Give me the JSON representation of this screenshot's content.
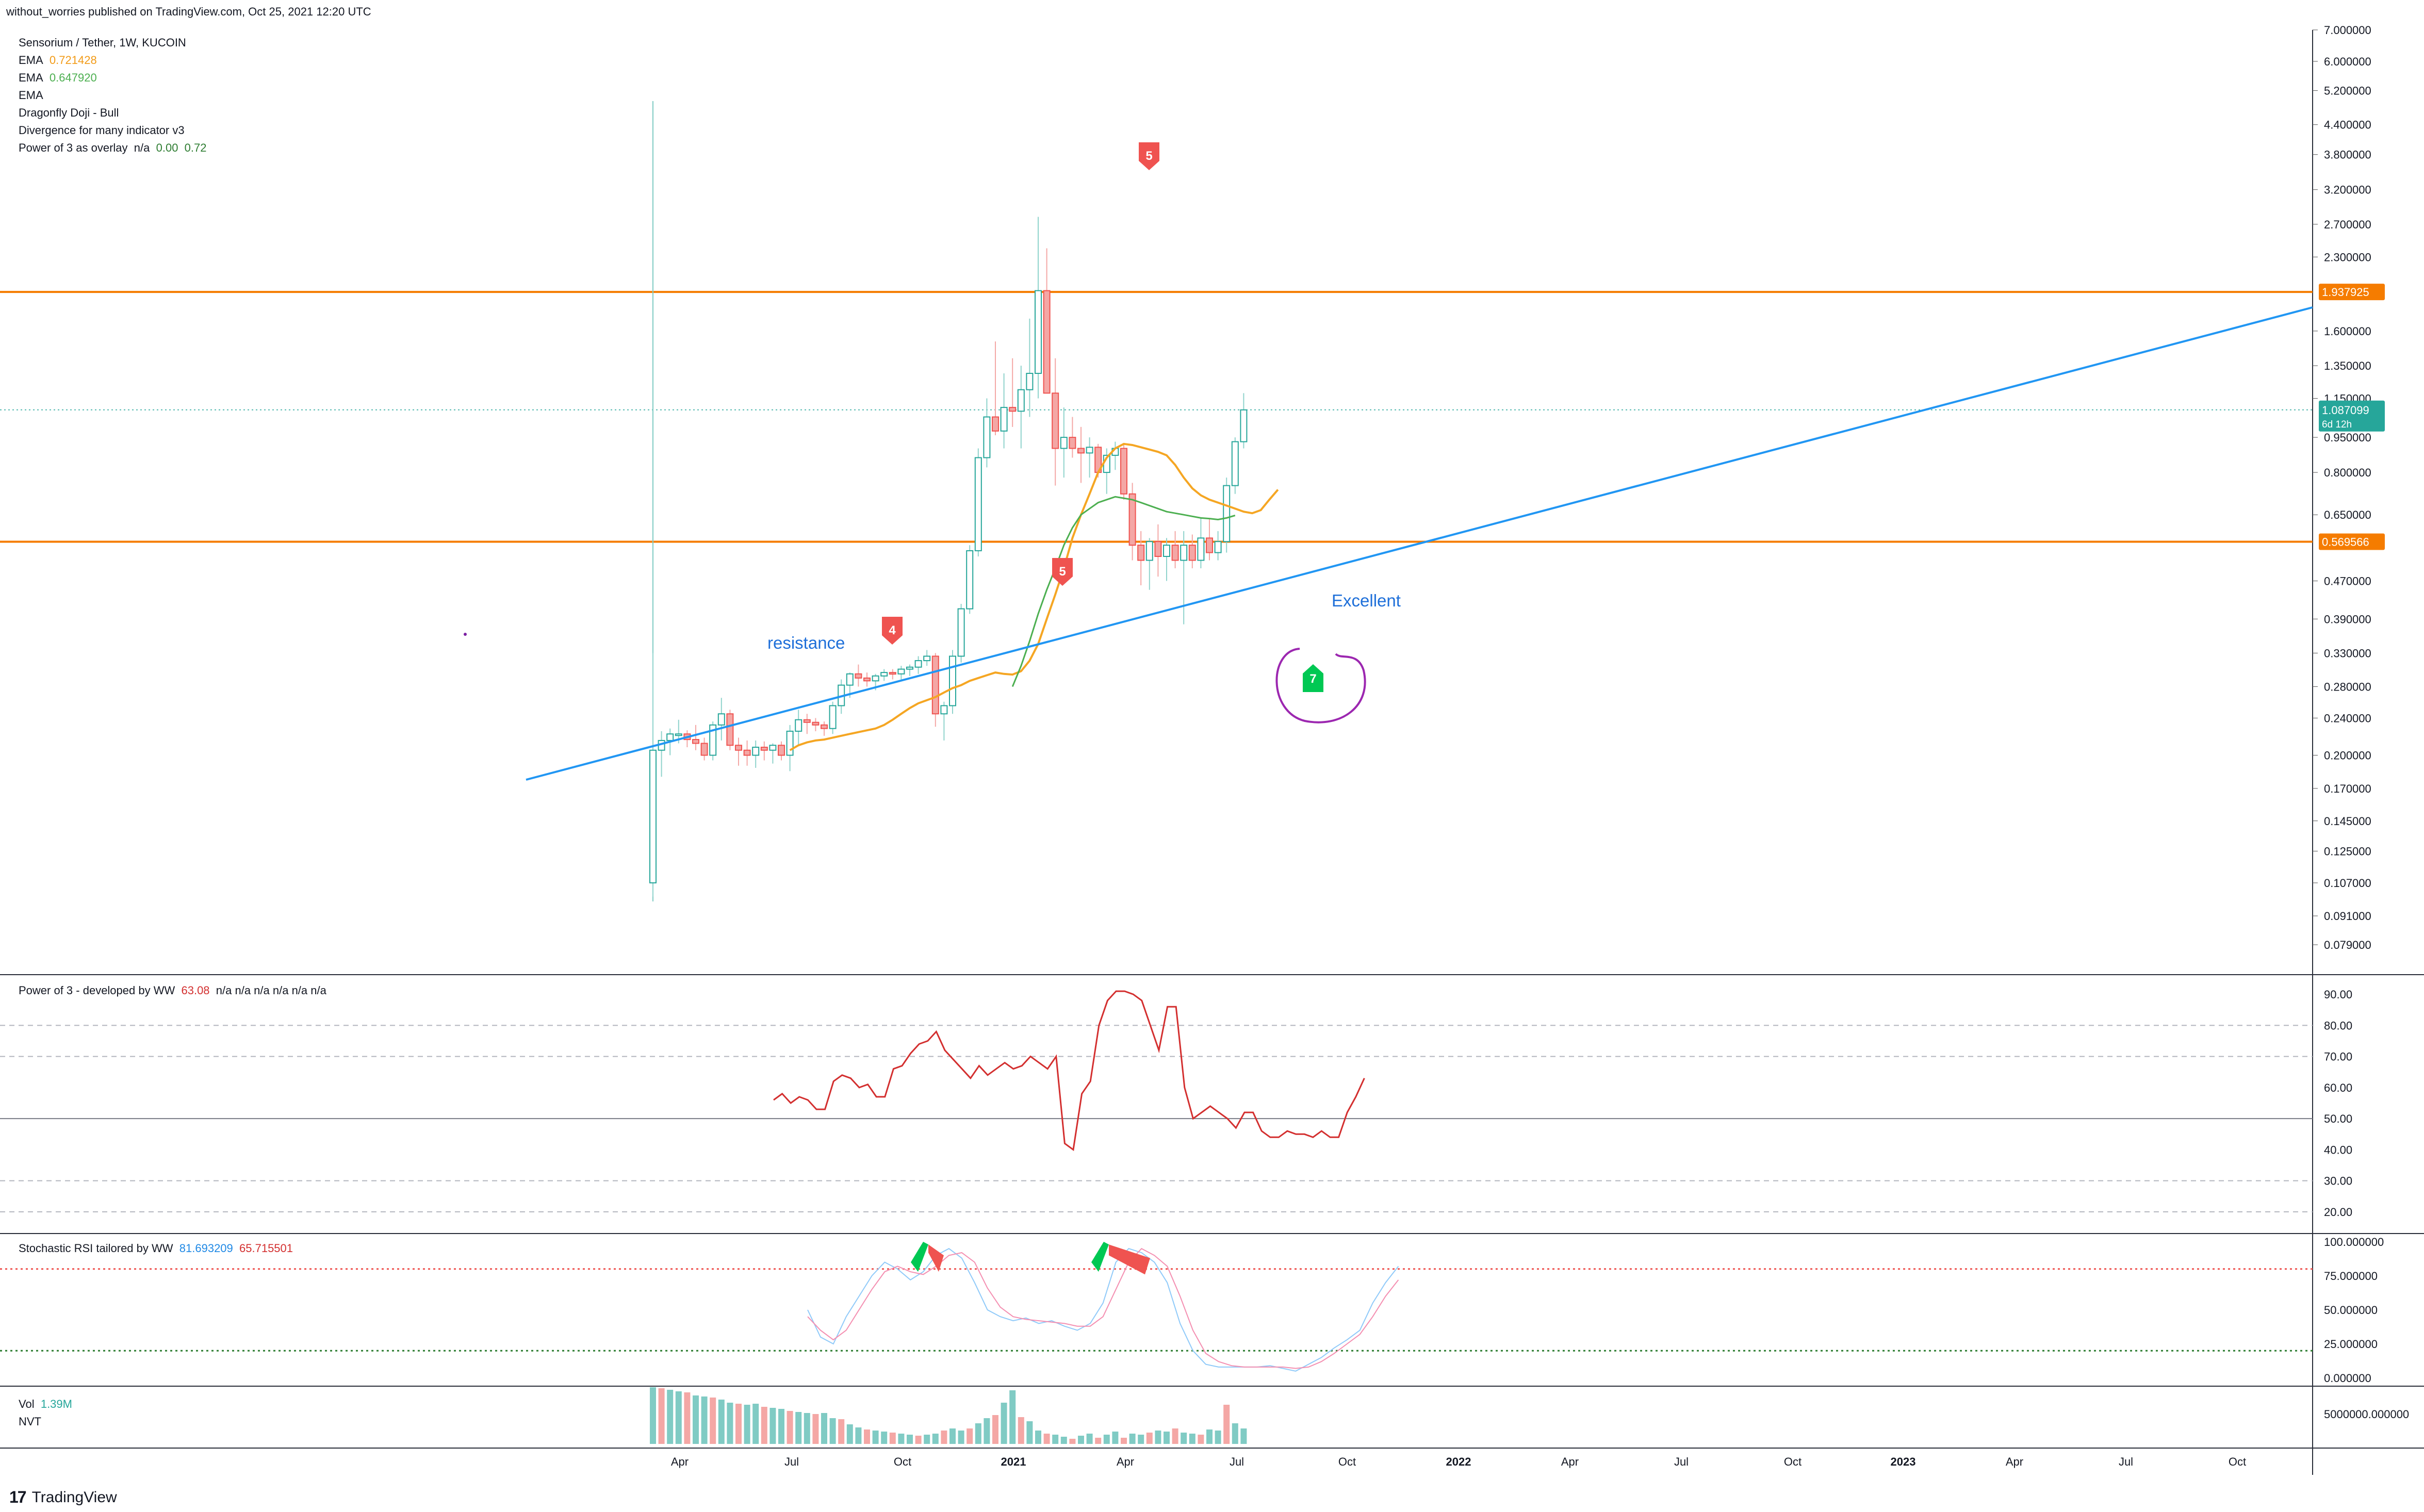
{
  "header": {
    "published": "without_worries published on TradingView.com, Oct 25, 2021 12:20 UTC"
  },
  "legend": {
    "symbol": "Sensorium / Tether, 1W, KUCOIN",
    "ema1_label": "EMA",
    "ema1_value": "0.721428",
    "ema2_label": "EMA",
    "ema2_value": "0.647920",
    "ema3_label": "EMA",
    "doji": "Dragonfly Doji - Bull",
    "divergence": "Divergence for many indicator v3",
    "power_label": "Power of 3 as overlay",
    "power_na": "n/a",
    "power_v1": "0.00",
    "power_v2": "0.72"
  },
  "annotations": {
    "resistance": "resistance",
    "excellent": "Excellent"
  },
  "markers": {
    "m1": "5",
    "m2": "4",
    "m3": "5",
    "m4": "7"
  },
  "indicator_panes": {
    "power": {
      "label": "Power of 3 - developed by WW",
      "value": "63.08",
      "na": "n/a  n/a  n/a  n/a  n/a  n/a"
    },
    "stoch": {
      "label": "Stochastic RSI tailored by WW",
      "k": "81.693209",
      "d": "65.715501"
    },
    "vol": {
      "label": "Vol",
      "value": "1.39M",
      "nvt": "NVT"
    }
  },
  "footer": {
    "brand": "TradingView",
    "logo": "17"
  },
  "colors": {
    "up": "#26a69a",
    "down": "#ef5350",
    "ema_orange": "#f5a623",
    "ema_green": "#4caf50",
    "hline": "#f57c00",
    "trend": "#2196f3",
    "purple": "#9c27b0"
  },
  "chart_data": [
    {
      "type": "candlestick",
      "title": "Sensorium / Tether, 1W, KUCOIN",
      "y_scale": "log",
      "y_ticks": [
        "7.000000",
        "6.000000",
        "5.200000",
        "4.400000",
        "3.800000",
        "3.200000",
        "2.700000",
        "2.300000",
        "1.937925",
        "1.600000",
        "1.350000",
        "1.150000",
        "1.087099",
        "0.950000",
        "0.800000",
        "0.650000",
        "0.569566",
        "0.470000",
        "0.390000",
        "0.330000",
        "0.280000",
        "0.240000",
        "0.200000",
        "0.170000",
        "0.145000",
        "0.125000",
        "0.107000",
        "0.091000",
        "0.079000"
      ],
      "y_tick_values": [
        7.0,
        6.0,
        5.2,
        4.4,
        3.8,
        3.2,
        2.7,
        2.3,
        1.937925,
        1.6,
        1.35,
        1.15,
        1.087099,
        0.95,
        0.8,
        0.65,
        0.569566,
        0.47,
        0.39,
        0.33,
        0.28,
        0.24,
        0.2,
        0.17,
        0.145,
        0.125,
        0.107,
        0.091,
        0.079
      ],
      "x_ticks": [
        "Apr",
        "Jul",
        "Oct",
        "2021",
        "Apr",
        "Jul",
        "Oct",
        "2022",
        "Apr",
        "Jul",
        "Oct",
        "2023",
        "Apr",
        "Jul",
        "Oct"
      ],
      "horizontal_levels": [
        1.937925,
        0.569566
      ],
      "current_price": "1.087099",
      "current_price_timer": "6d 12h",
      "trendline_label": "resistance",
      "series": [
        {
          "name": "EMA 0.721428"
        },
        {
          "name": "EMA 0.647920"
        }
      ]
    },
    {
      "type": "line",
      "title": "Power of 3 - developed by WW",
      "y_ticks": [
        "90.00",
        "80.00",
        "70.00",
        "60.00",
        "50.00",
        "40.00",
        "30.00",
        "20.00"
      ]
    },
    {
      "type": "line",
      "title": "Stochastic RSI tailored by WW",
      "y_ticks": [
        "100.000000",
        "75.000000",
        "50.000000",
        "25.000000",
        "0.000000"
      ]
    },
    {
      "type": "bar",
      "title": "Vol",
      "y_ticks": [
        "5000000.000000"
      ]
    }
  ]
}
